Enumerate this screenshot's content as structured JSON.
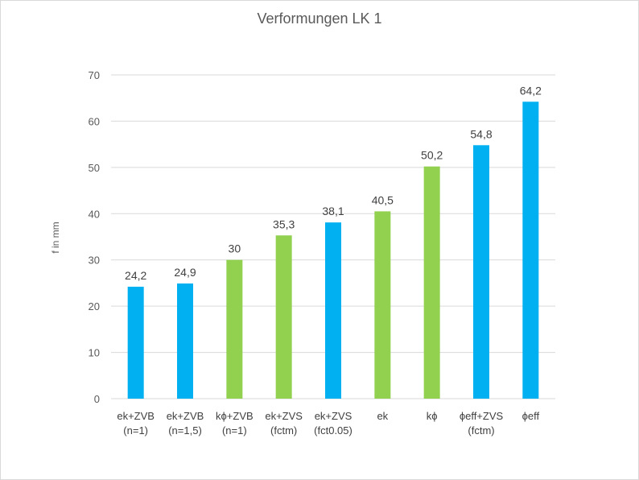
{
  "chart_data": {
    "type": "bar",
    "title": "Verformungen LK 1",
    "xlabel": "",
    "ylabel": "f in mm",
    "ylim": [
      0,
      70
    ],
    "yticks": [
      "0",
      "10",
      "20",
      "30",
      "40",
      "50",
      "60",
      "70"
    ],
    "grid": true,
    "legend": "none",
    "categories": [
      [
        "ek+ZVB",
        "(n=1)"
      ],
      [
        "ek+ZVB",
        "(n=1,5)"
      ],
      [
        "kϕ+ZVB",
        "(n=1)"
      ],
      [
        "ek+ZVS",
        "(fctm)"
      ],
      [
        "ek+ZVS",
        "(fct0.05)"
      ],
      [
        "ek"
      ],
      [
        "kϕ"
      ],
      [
        "ϕeff+ZVS",
        "(fctm)"
      ],
      [
        "ϕeff"
      ]
    ],
    "values": [
      24.2,
      24.9,
      30,
      35.3,
      38.1,
      40.5,
      50.2,
      54.8,
      64.2
    ],
    "data_labels": [
      "24,2",
      "24,9",
      "30",
      "35,3",
      "38,1",
      "40,5",
      "50,2",
      "54,8",
      "64,2"
    ],
    "bar_colors": [
      "#00b0f0",
      "#00b0f0",
      "#92d050",
      "#92d050",
      "#00b0f0",
      "#92d050",
      "#92d050",
      "#00b0f0",
      "#00b0f0"
    ]
  },
  "colors": {
    "grid": "#d9d9d9",
    "axis_text": "#595959",
    "label_text": "#404040"
  }
}
